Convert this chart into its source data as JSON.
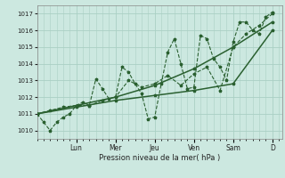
{
  "xlabel": "Pression niveau de la mer( hPa )",
  "bg_color": "#cce8e0",
  "grid_color": "#aad0c4",
  "line_color": "#2a6030",
  "ylim": [
    1009.5,
    1017.5
  ],
  "yticks": [
    1010,
    1011,
    1012,
    1013,
    1014,
    1015,
    1016,
    1017
  ],
  "xlim": [
    0,
    300
  ],
  "day_positions": [
    48,
    96,
    144,
    192,
    240,
    288
  ],
  "day_labels": [
    "Lun",
    "Mer",
    "Jeu",
    "Ven",
    "Sam",
    "D"
  ],
  "series": [
    {
      "x": [
        0,
        8,
        16,
        24,
        32,
        40,
        48,
        56,
        64,
        72,
        80,
        88,
        96,
        104,
        112,
        120,
        128,
        136,
        144,
        152,
        160,
        168,
        176,
        184,
        192,
        200,
        208,
        216,
        224,
        232,
        240,
        248,
        256,
        264,
        272,
        280,
        288
      ],
      "y": [
        1011.0,
        1010.5,
        1010.0,
        1010.5,
        1010.8,
        1011.0,
        1011.5,
        1011.7,
        1011.5,
        1013.1,
        1012.5,
        1011.9,
        1012.0,
        1013.8,
        1013.5,
        1012.8,
        1012.2,
        1010.7,
        1010.8,
        1012.8,
        1014.7,
        1015.5,
        1014.0,
        1012.5,
        1012.6,
        1015.7,
        1015.5,
        1014.3,
        1013.8,
        1013.0,
        1015.3,
        1016.5,
        1016.5,
        1016.0,
        1015.8,
        1016.8,
        1017.1
      ],
      "ls": "--",
      "lw": 0.8
    },
    {
      "x": [
        0,
        16,
        32,
        48,
        64,
        80,
        96,
        112,
        128,
        144,
        160,
        176,
        192,
        208,
        224,
        240,
        256,
        272,
        288
      ],
      "y": [
        1011.0,
        1011.2,
        1011.4,
        1011.5,
        1011.5,
        1011.8,
        1012.0,
        1013.0,
        1012.6,
        1012.8,
        1013.3,
        1012.7,
        1013.4,
        1013.8,
        1012.4,
        1015.0,
        1015.8,
        1016.3,
        1017.0
      ],
      "ls": "--",
      "lw": 0.8
    },
    {
      "x": [
        0,
        48,
        96,
        144,
        192,
        240,
        288
      ],
      "y": [
        1011.0,
        1011.5,
        1012.0,
        1012.7,
        1013.7,
        1015.0,
        1016.5
      ],
      "ls": "-",
      "lw": 1.1
    },
    {
      "x": [
        0,
        48,
        96,
        144,
        192,
        240,
        288
      ],
      "y": [
        1011.0,
        1011.4,
        1011.8,
        1012.1,
        1012.4,
        1012.8,
        1016.0
      ],
      "ls": "-",
      "lw": 1.1
    }
  ]
}
